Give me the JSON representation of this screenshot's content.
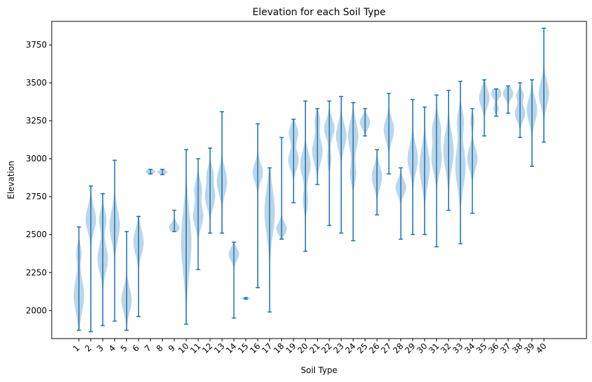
{
  "chart_data": {
    "type": "violin",
    "title": "Elevation for each Soil Type",
    "xlabel": "Soil Type",
    "ylabel": "Elevation",
    "ylim": [
      1815,
      3905
    ],
    "yticks": [
      2000,
      2250,
      2500,
      2750,
      3000,
      3250,
      3500,
      3750
    ],
    "grid": false,
    "colors": {
      "body": "#1f77b4",
      "line": "#1f77b4"
    },
    "categories": [
      "1",
      "2",
      "3",
      "4",
      "5",
      "6",
      "7",
      "8",
      "9",
      "10",
      "11",
      "12",
      "13",
      "14",
      "15",
      "16",
      "17",
      "18",
      "19",
      "20",
      "21",
      "22",
      "23",
      "24",
      "25",
      "26",
      "27",
      "28",
      "29",
      "30",
      "31",
      "32",
      "33",
      "34",
      "35",
      "36",
      "37",
      "38",
      "39",
      "40"
    ],
    "violins": [
      {
        "min": 1870,
        "max": 2550,
        "modes": [
          [
            2100,
            110,
            1
          ],
          [
            2380,
            50,
            0.5
          ]
        ]
      },
      {
        "min": 1860,
        "max": 2820,
        "modes": [
          [
            2600,
            80,
            1
          ]
        ]
      },
      {
        "min": 1900,
        "max": 2770,
        "modes": [
          [
            2340,
            90,
            1
          ],
          [
            2600,
            60,
            0.7
          ]
        ]
      },
      {
        "min": 1930,
        "max": 2990,
        "modes": [
          [
            2560,
            100,
            1
          ]
        ]
      },
      {
        "min": 1870,
        "max": 2520,
        "modes": [
          [
            2070,
            80,
            1
          ]
        ]
      },
      {
        "min": 1960,
        "max": 2620,
        "modes": [
          [
            2450,
            80,
            1
          ]
        ]
      },
      {
        "min": 2900,
        "max": 2930,
        "modes": [
          [
            2915,
            12,
            1
          ]
        ]
      },
      {
        "min": 2895,
        "max": 2930,
        "modes": [
          [
            2912,
            12,
            1
          ]
        ]
      },
      {
        "min": 2520,
        "max": 2660,
        "modes": [
          [
            2545,
            30,
            1
          ]
        ]
      },
      {
        "min": 1910,
        "max": 3060,
        "modes": [
          [
            2450,
            200,
            1
          ]
        ]
      },
      {
        "min": 2270,
        "max": 3000,
        "modes": [
          [
            2620,
            70,
            1
          ],
          [
            2800,
            60,
            0.7
          ]
        ]
      },
      {
        "min": 2510,
        "max": 3070,
        "modes": [
          [
            2750,
            70,
            1
          ],
          [
            2900,
            50,
            0.6
          ]
        ]
      },
      {
        "min": 2510,
        "max": 3310,
        "modes": [
          [
            2850,
            80,
            1
          ]
        ]
      },
      {
        "min": 1950,
        "max": 2450,
        "modes": [
          [
            2370,
            40,
            1
          ]
        ]
      },
      {
        "min": 2075,
        "max": 2085,
        "modes": [
          [
            2080,
            5,
            1
          ]
        ]
      },
      {
        "min": 2150,
        "max": 3230,
        "modes": [
          [
            2910,
            60,
            1
          ]
        ]
      },
      {
        "min": 1990,
        "max": 2940,
        "modes": [
          [
            2650,
            150,
            1
          ]
        ]
      },
      {
        "min": 2470,
        "max": 3140,
        "modes": [
          [
            2540,
            40,
            1
          ]
        ]
      },
      {
        "min": 2710,
        "max": 3260,
        "modes": [
          [
            2990,
            60,
            1
          ],
          [
            3170,
            50,
            0.9
          ]
        ]
      },
      {
        "min": 2390,
        "max": 3380,
        "modes": [
          [
            2960,
            80,
            1
          ],
          [
            2720,
            60,
            0.5
          ]
        ]
      },
      {
        "min": 2830,
        "max": 3330,
        "modes": [
          [
            3050,
            80,
            1
          ],
          [
            3250,
            50,
            0.5
          ]
        ]
      },
      {
        "min": 2560,
        "max": 3380,
        "modes": [
          [
            3200,
            60,
            1
          ],
          [
            3000,
            50,
            0.4
          ]
        ]
      },
      {
        "min": 2510,
        "max": 3410,
        "modes": [
          [
            3150,
            80,
            1
          ]
        ]
      },
      {
        "min": 2460,
        "max": 3370,
        "modes": [
          [
            3150,
            90,
            1
          ],
          [
            2900,
            60,
            0.6
          ]
        ]
      },
      {
        "min": 3150,
        "max": 3330,
        "modes": [
          [
            3240,
            40,
            1
          ]
        ]
      },
      {
        "min": 2630,
        "max": 3060,
        "modes": [
          [
            2880,
            70,
            1
          ]
        ]
      },
      {
        "min": 2900,
        "max": 3430,
        "modes": [
          [
            3190,
            70,
            1
          ]
        ]
      },
      {
        "min": 2470,
        "max": 2940,
        "modes": [
          [
            2810,
            50,
            1
          ]
        ]
      },
      {
        "min": 2500,
        "max": 3390,
        "modes": [
          [
            3000,
            90,
            1
          ]
        ]
      },
      {
        "min": 2500,
        "max": 3340,
        "modes": [
          [
            2950,
            120,
            1
          ]
        ]
      },
      {
        "min": 2420,
        "max": 3420,
        "modes": [
          [
            3000,
            90,
            1
          ],
          [
            3200,
            70,
            0.8
          ]
        ]
      },
      {
        "min": 2660,
        "max": 3450,
        "modes": [
          [
            3050,
            120,
            1
          ]
        ]
      },
      {
        "min": 2440,
        "max": 3510,
        "modes": [
          [
            2950,
            130,
            1
          ],
          [
            3250,
            70,
            0.6
          ]
        ]
      },
      {
        "min": 2640,
        "max": 3330,
        "modes": [
          [
            3000,
            70,
            1
          ],
          [
            3250,
            40,
            0.4
          ]
        ]
      },
      {
        "min": 3150,
        "max": 3520,
        "modes": [
          [
            3400,
            60,
            1
          ]
        ]
      },
      {
        "min": 3280,
        "max": 3460,
        "modes": [
          [
            3430,
            30,
            1
          ],
          [
            3330,
            25,
            0.5
          ]
        ]
      },
      {
        "min": 3300,
        "max": 3480,
        "modes": [
          [
            3430,
            35,
            1
          ]
        ]
      },
      {
        "min": 3140,
        "max": 3500,
        "modes": [
          [
            3300,
            50,
            1
          ],
          [
            3420,
            30,
            0.7
          ]
        ]
      },
      {
        "min": 2950,
        "max": 3520,
        "modes": [
          [
            3320,
            80,
            1
          ]
        ]
      },
      {
        "min": 3110,
        "max": 3860,
        "modes": [
          [
            3430,
            80,
            1
          ]
        ]
      }
    ]
  }
}
